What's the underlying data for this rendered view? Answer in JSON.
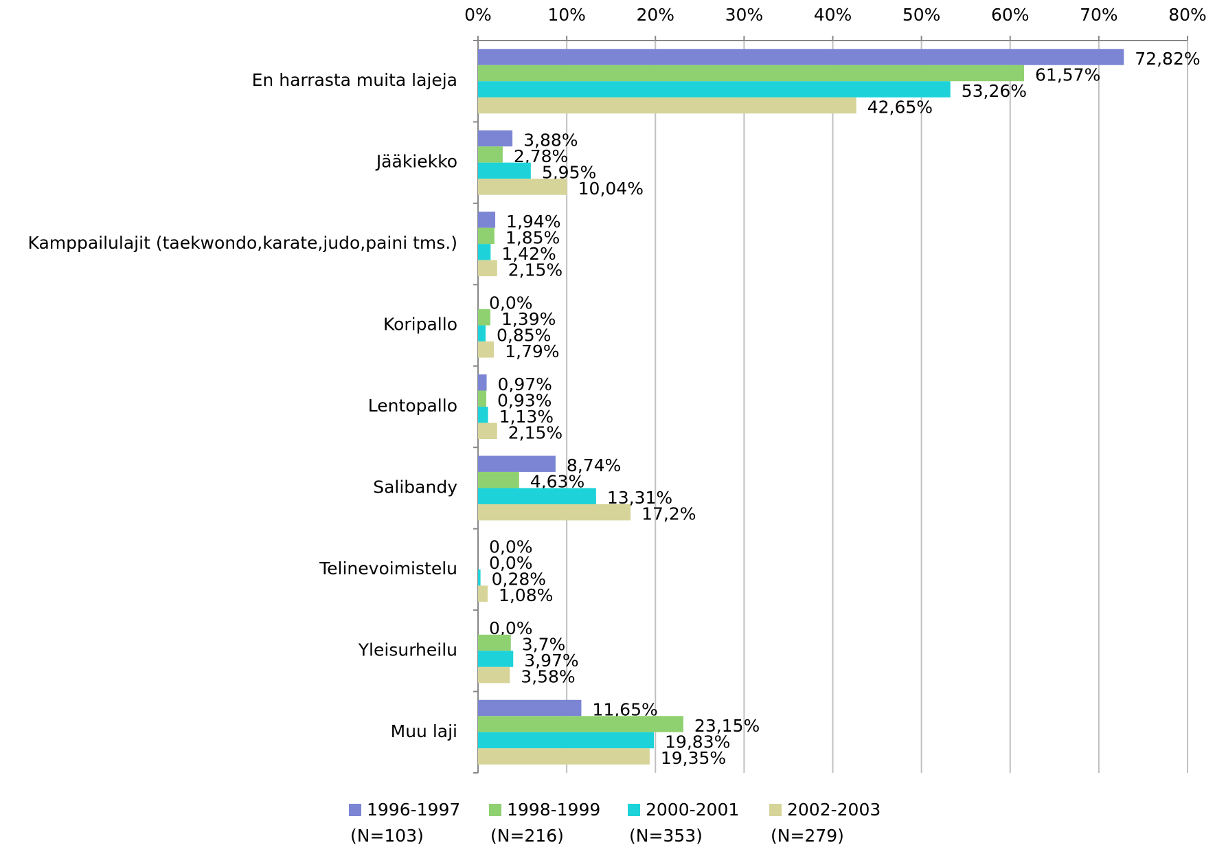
{
  "chart_data": {
    "type": "bar",
    "orientation": "horizontal",
    "categories": [
      "En harrasta muita lajeja",
      "Jääkiekko",
      "Kamppailulajit (taekwondo,karate,judo,paini tms.)",
      "Koripallo",
      "Lentopallo",
      "Salibandy",
      "Telinevoimistelu",
      "Yleisurheilu",
      "Muu laji"
    ],
    "series": [
      {
        "name": "1996-1997 (N=103)",
        "color": "#7b85d4",
        "values": [
          72.82,
          3.88,
          1.94,
          0.0,
          0.97,
          8.74,
          0.0,
          0.0,
          11.65
        ],
        "value_labels": [
          "72,82%",
          "3,88%",
          "1,94%",
          "0,0%",
          "0,97%",
          "8,74%",
          "0,0%",
          "0,0%",
          "11,65%"
        ]
      },
      {
        "name": "1998-1999 (N=216)",
        "color": "#8fd170",
        "values": [
          61.57,
          2.78,
          1.85,
          1.39,
          0.93,
          4.63,
          0.0,
          3.7,
          23.15
        ],
        "value_labels": [
          "61,57%",
          "2,78%",
          "1,85%",
          "1,39%",
          "0,93%",
          "4,63%",
          "0,0%",
          "3,7%",
          "23,15%"
        ]
      },
      {
        "name": "2000-2001 (N=353)",
        "color": "#1dd3d9",
        "values": [
          53.26,
          5.95,
          1.42,
          0.85,
          1.13,
          13.31,
          0.28,
          3.97,
          19.83
        ],
        "value_labels": [
          "53,26%",
          "5,95%",
          "1,42%",
          "0,85%",
          "1,13%",
          "13,31%",
          "0,28%",
          "3,97%",
          "19,83%"
        ]
      },
      {
        "name": "2002-2003 (N=279)",
        "color": "#d6d498",
        "values": [
          42.65,
          10.04,
          2.15,
          1.79,
          2.15,
          17.2,
          1.08,
          3.58,
          19.35
        ],
        "value_labels": [
          "42,65%",
          "10,04%",
          "2,15%",
          "1,79%",
          "2,15%",
          "17,2%",
          "1,08%",
          "3,58%",
          "19,35%"
        ]
      }
    ],
    "xlim": [
      0,
      80
    ],
    "xticks": [
      {
        "value": 0,
        "label": "0%"
      },
      {
        "value": 10,
        "label": "10%"
      },
      {
        "value": 20,
        "label": "20%"
      },
      {
        "value": 30,
        "label": "30%"
      },
      {
        "value": 40,
        "label": "40%"
      },
      {
        "value": 50,
        "label": "50%"
      },
      {
        "value": 60,
        "label": "60%"
      },
      {
        "value": 70,
        "label": "70%"
      },
      {
        "value": 80,
        "label": "80%"
      }
    ],
    "grid": true,
    "legend": "bottom"
  }
}
